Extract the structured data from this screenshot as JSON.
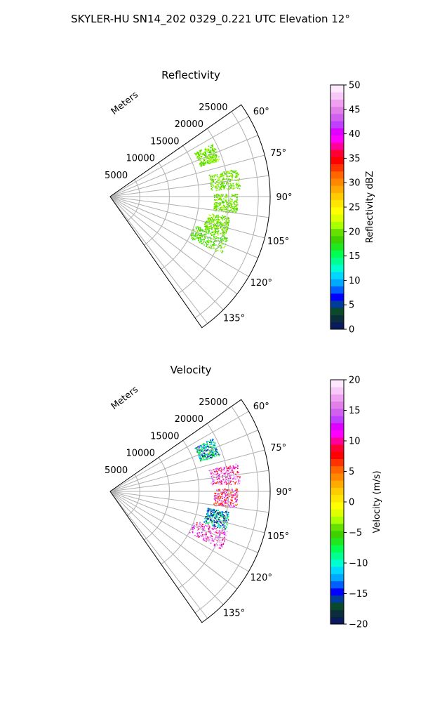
{
  "suptitle": "SKYLER-HU  SN14_202  0329_0.221 UTC Elevation 12°",
  "chart_data": [
    {
      "type": "polar-sector",
      "title": "Reflectivity",
      "radial_axis_label": "Meters",
      "r_ticks": [
        5000,
        10000,
        15000,
        20000,
        25000
      ],
      "r_tick_labels": [
        "5000",
        "10000",
        "15000",
        "20000",
        "25000"
      ],
      "theta_ticks_deg": [
        60,
        75,
        90,
        105,
        120,
        135
      ],
      "theta_tick_labels": [
        "60°",
        "75°",
        "90°",
        "105°",
        "120°",
        "135°"
      ],
      "theta_range_deg": [
        55,
        145
      ],
      "r_max": 27000,
      "grid": true,
      "colorbar": {
        "label": "Reflectivity dBZ",
        "min": 0,
        "max": 50,
        "ticks": [
          0,
          5,
          10,
          15,
          20,
          25,
          30,
          35,
          40,
          45,
          50
        ],
        "tick_labels": [
          "0",
          "5",
          "10",
          "15",
          "20",
          "25",
          "30",
          "35",
          "40",
          "45",
          "50"
        ],
        "palette": [
          "#0a1a5a",
          "#0b2f3a",
          "#0a4a2a",
          "#003c9c",
          "#0000ff",
          "#0060ff",
          "#00a8ff",
          "#00d8ff",
          "#00ffd0",
          "#00ff90",
          "#00ff50",
          "#20e820",
          "#40d000",
          "#66e000",
          "#aaff00",
          "#ddff00",
          "#ffff00",
          "#ffe600",
          "#ffcc00",
          "#ffaa00",
          "#ff8800",
          "#ff6600",
          "#ff3300",
          "#ff0000",
          "#ff0033",
          "#ff0099",
          "#ff00ff",
          "#e000ff",
          "#c040ff",
          "#d060f0",
          "#e080e8",
          "#f0a0f0",
          "#f8c8f8",
          "#fde8fd"
        ]
      },
      "echo_clusters": [
        {
          "theta": 67,
          "r_min": 16000,
          "r_max": 19500,
          "value": 20
        },
        {
          "theta": 82,
          "r_min": 17000,
          "r_max": 22000,
          "value": 20
        },
        {
          "theta": 93,
          "r_min": 17500,
          "r_max": 21500,
          "value": 20
        },
        {
          "theta": 104,
          "r_min": 16500,
          "r_max": 20500,
          "value": 20
        },
        {
          "theta": 113,
          "r_min": 15000,
          "r_max": 21000,
          "value": 19
        }
      ]
    },
    {
      "type": "polar-sector",
      "title": "Velocity",
      "radial_axis_label": "Meters",
      "r_ticks": [
        5000,
        10000,
        15000,
        20000,
        25000
      ],
      "r_tick_labels": [
        "5000",
        "10000",
        "15000",
        "20000",
        "25000"
      ],
      "theta_ticks_deg": [
        60,
        75,
        90,
        105,
        120,
        135
      ],
      "theta_tick_labels": [
        "60°",
        "75°",
        "90°",
        "105°",
        "120°",
        "135°"
      ],
      "theta_range_deg": [
        55,
        145
      ],
      "r_max": 27000,
      "grid": true,
      "colorbar": {
        "label": "Velocity (m/s)",
        "min": -20,
        "max": 20,
        "ticks": [
          -20,
          -15,
          -10,
          -5,
          0,
          5,
          10,
          15,
          20
        ],
        "tick_labels": [
          "−20",
          "−15",
          "−10",
          "−5",
          "0",
          "5",
          "10",
          "15",
          "20"
        ],
        "palette": [
          "#0a1a5a",
          "#0b2f3a",
          "#0a4a2a",
          "#003c9c",
          "#0000ff",
          "#0060ff",
          "#00a8ff",
          "#00d8ff",
          "#00ffd0",
          "#00ff90",
          "#00ff50",
          "#20e820",
          "#40d000",
          "#66e000",
          "#aaff00",
          "#ddff00",
          "#ffff00",
          "#ffe600",
          "#ffcc00",
          "#ffaa00",
          "#ff8800",
          "#ff6600",
          "#ff3300",
          "#ff0000",
          "#ff0033",
          "#ff0099",
          "#ff00ff",
          "#e000ff",
          "#c040ff",
          "#d060f0",
          "#e080e8",
          "#f0a0f0",
          "#f8c8f8",
          "#fde8fd"
        ]
      },
      "echo_clusters": [
        {
          "theta": 67,
          "r_min": 16000,
          "r_max": 19500,
          "value": -11
        },
        {
          "theta": 82,
          "r_min": 17000,
          "r_max": 22000,
          "value": 13
        },
        {
          "theta": 93,
          "r_min": 17500,
          "r_max": 21500,
          "value": 10
        },
        {
          "theta": 104,
          "r_min": 16500,
          "r_max": 20500,
          "value": -13
        },
        {
          "theta": 113,
          "r_min": 15000,
          "r_max": 21000,
          "value": 14
        }
      ]
    }
  ]
}
